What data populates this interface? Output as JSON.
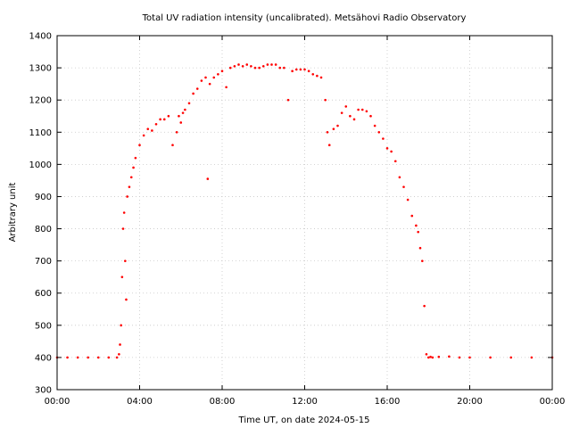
{
  "chart_data": {
    "type": "scatter",
    "title": "Total UV radiation intensity (uncalibrated). Metsähovi Radio Observatory",
    "xlabel": "Time UT, on date 2024-05-15",
    "ylabel": "Arbitrary unit",
    "xlim": [
      0,
      24
    ],
    "ylim": [
      300,
      1400
    ],
    "xticks": [
      {
        "value": 0,
        "label": "00:00"
      },
      {
        "value": 4,
        "label": "04:00"
      },
      {
        "value": 8,
        "label": "08:00"
      },
      {
        "value": 12,
        "label": "12:00"
      },
      {
        "value": 16,
        "label": "16:00"
      },
      {
        "value": 20,
        "label": "20:00"
      },
      {
        "value": 24,
        "label": "00:00"
      }
    ],
    "yticks": [
      300,
      400,
      500,
      600,
      700,
      800,
      900,
      1000,
      1100,
      1200,
      1300,
      1400
    ],
    "grid": true,
    "marker_color": "#ff0000",
    "series": [
      {
        "x": [
          0,
          0.5,
          1,
          1.5,
          2,
          2.5,
          2.9,
          3.0,
          3.05,
          3.1,
          3.15,
          3.2,
          3.25,
          3.3,
          3.35,
          3.4,
          3.5,
          3.6,
          3.7,
          3.8,
          4.0,
          4.2,
          4.4,
          4.6,
          4.8,
          5.0,
          5.2,
          5.4,
          5.6,
          5.8,
          5.9,
          6.0,
          6.1,
          6.2,
          6.4,
          6.6,
          6.8,
          7.0,
          7.2,
          7.3,
          7.4,
          7.6,
          7.8,
          8.0,
          8.2,
          8.4,
          8.6,
          8.8,
          9.0,
          9.2,
          9.4,
          9.6,
          9.8,
          10.0,
          10.2,
          10.4,
          10.6,
          10.8,
          11.0,
          11.2,
          11.4,
          11.6,
          11.8,
          12.0,
          12.2,
          12.4,
          12.6,
          12.8,
          13.0,
          13.1,
          13.2,
          13.4,
          13.6,
          13.8,
          14.0,
          14.2,
          14.4,
          14.6,
          14.8,
          15.0,
          15.2,
          15.4,
          15.6,
          15.8,
          16.0,
          16.2,
          16.4,
          16.6,
          16.8,
          17.0,
          17.2,
          17.4,
          17.5,
          17.6,
          17.7,
          17.8,
          17.9,
          18.0,
          18.1,
          18.2,
          18.5,
          19.0,
          19.5,
          20.0,
          21,
          22,
          23,
          24
        ],
        "y": [
          400,
          400,
          400,
          400,
          400,
          400,
          400,
          410,
          440,
          500,
          650,
          800,
          850,
          700,
          580,
          900,
          930,
          960,
          990,
          1020,
          1060,
          1090,
          1110,
          1105,
          1125,
          1140,
          1140,
          1150,
          1060,
          1100,
          1150,
          1130,
          1160,
          1170,
          1190,
          1220,
          1235,
          1260,
          1270,
          955,
          1250,
          1270,
          1280,
          1290,
          1240,
          1300,
          1305,
          1310,
          1305,
          1310,
          1305,
          1300,
          1300,
          1305,
          1310,
          1310,
          1310,
          1300,
          1300,
          1200,
          1290,
          1295,
          1295,
          1295,
          1290,
          1280,
          1275,
          1270,
          1200,
          1100,
          1060,
          1110,
          1120,
          1160,
          1180,
          1150,
          1140,
          1170,
          1170,
          1165,
          1150,
          1120,
          1100,
          1080,
          1050,
          1040,
          1010,
          960,
          930,
          890,
          840,
          810,
          790,
          740,
          700,
          560,
          410,
          400,
          402,
          400,
          402,
          403,
          400,
          400,
          400,
          400,
          400,
          400
        ]
      }
    ]
  }
}
